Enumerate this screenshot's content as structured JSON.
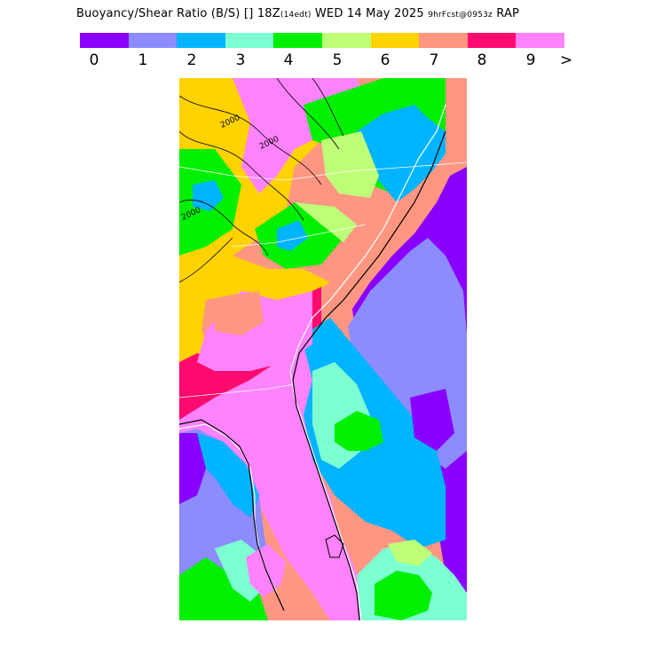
{
  "header": {
    "title": "Buoyancy/Shear Ratio (B/S)",
    "box": "[]",
    "valid_time": "18Z",
    "valid_local": "(14edt)",
    "date": "WED 14 May 2025",
    "fcst": "9hrFcst@0953z",
    "model": "RAP"
  },
  "legend": {
    "colors": [
      "#8a00ff",
      "#8c8cff",
      "#00b4ff",
      "#7dffd2",
      "#00f000",
      "#beff78",
      "#ffd200",
      "#ff9682",
      "#ff0a6e",
      "#ff82ff"
    ],
    "labels": [
      "0",
      "1",
      "2",
      "3",
      "4",
      "5",
      "6",
      "7",
      "8",
      "9",
      ">"
    ]
  },
  "map": {
    "contour_labels": [
      "2000",
      "2000",
      "2000"
    ]
  }
}
